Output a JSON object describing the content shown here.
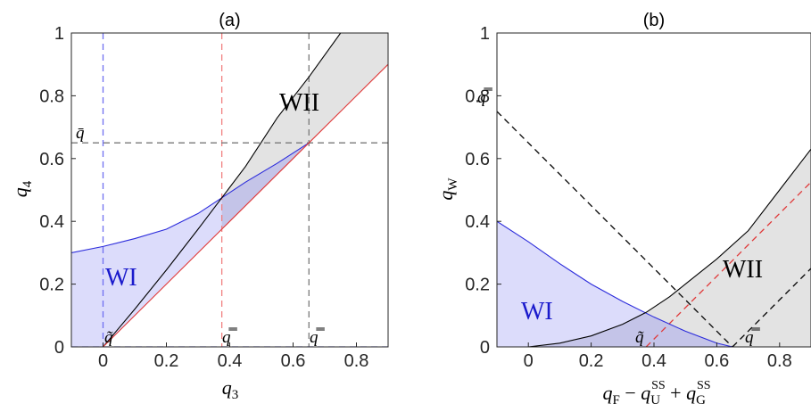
{
  "chart_data": [
    {
      "type": "line",
      "title": "(a)",
      "xlabel": "q_3",
      "ylabel": "q_4",
      "xlim": [
        -0.1,
        0.9
      ],
      "ylim": [
        0,
        1
      ],
      "xticks": [
        "0",
        "0.2",
        "0.4",
        "0.6",
        "0.8"
      ],
      "yticks": [
        "0",
        "0.2",
        "0.4",
        "0.6",
        "0.8",
        "1"
      ],
      "grid": false,
      "series": [
        {
          "color": "#2b2bdb",
          "x": [
            -0.1,
            0.0,
            0.1,
            0.2,
            0.3,
            0.375,
            0.45,
            0.55,
            0.65
          ],
          "y": [
            0.3,
            0.32,
            0.345,
            0.375,
            0.425,
            0.475,
            0.525,
            0.585,
            0.65
          ]
        },
        {
          "color": "#000000",
          "x": [
            0.0,
            0.1,
            0.2,
            0.3,
            0.375,
            0.45,
            0.55,
            0.65,
            0.75
          ],
          "y": [
            0.0,
            0.12,
            0.245,
            0.375,
            0.475,
            0.575,
            0.73,
            0.86,
            1.0
          ]
        },
        {
          "color": "#e03a3a",
          "x": [
            0.0,
            0.375,
            0.65,
            0.9
          ],
          "y": [
            0.0,
            0.375,
            0.65,
            0.9
          ]
        }
      ],
      "reference_lines": [
        {
          "orient": "vertical",
          "value": 0,
          "color": "#6f6ff0"
        },
        {
          "orient": "vertical",
          "value": 0.375,
          "color": "#f08080"
        },
        {
          "orient": "vertical",
          "value": 0.65,
          "color": "#7a7a7a"
        },
        {
          "orient": "horizontal",
          "value": 0.65,
          "color": "#7a7a7a"
        },
        {
          "orient": "horizontal",
          "value": 0,
          "color": "#6f6ff0"
        }
      ],
      "regions": [
        {
          "label": "WI",
          "color": "#1a1acc",
          "fill": "#dcdcfb"
        },
        {
          "label": "WII",
          "color": "#000000",
          "fill": "#e3e3e3"
        }
      ],
      "annotations": [
        "q̄",
        "q̃",
        "q̿",
        "q̿"
      ]
    },
    {
      "type": "line",
      "title": "(b)",
      "xlabel": "q_F − q_U^SS + q_G^SS",
      "ylabel": "q_W",
      "xlim": [
        -0.1,
        0.9
      ],
      "ylim": [
        0,
        1
      ],
      "xticks": [
        "0",
        "0.2",
        "0.4",
        "0.6",
        "0.8"
      ],
      "yticks": [
        "0",
        "0.2",
        "0.4",
        "0.6",
        "0.8",
        "1"
      ],
      "grid": false,
      "series": [
        {
          "color": "#2b2bdb",
          "x": [
            -0.1,
            0.0,
            0.1,
            0.2,
            0.3,
            0.4,
            0.5,
            0.6,
            0.65
          ],
          "y": [
            0.4,
            0.335,
            0.265,
            0.2,
            0.145,
            0.095,
            0.05,
            0.012,
            0.0
          ]
        },
        {
          "color": "#000000",
          "x": [
            0.0,
            0.1,
            0.2,
            0.3,
            0.375,
            0.45,
            0.5,
            0.6,
            0.7,
            0.8,
            0.9
          ],
          "y": [
            0.0,
            0.012,
            0.035,
            0.072,
            0.11,
            0.16,
            0.2,
            0.28,
            0.37,
            0.5,
            0.63
          ]
        },
        {
          "color": "#e03a3a",
          "x": [
            -0.1,
            0.375,
            0.9
          ],
          "y": [
            0.0,
            0.0,
            0.0
          ]
        }
      ],
      "reference_lines": [
        {
          "orient": "diagonal",
          "from": [
            -0.1,
            0.75
          ],
          "to": [
            0.65,
            0.0
          ],
          "color": "#000000"
        },
        {
          "orient": "diagonal",
          "from": [
            0.375,
            0.0
          ],
          "to": [
            0.9,
            0.525
          ],
          "color": "#e03a3a"
        },
        {
          "orient": "diagonal",
          "from": [
            0.65,
            0.0
          ],
          "to": [
            0.9,
            0.25
          ],
          "color": "#000000"
        }
      ],
      "regions": [
        {
          "label": "WI",
          "color": "#1a1acc",
          "fill": "#dcdcfb"
        },
        {
          "label": "WII",
          "color": "#000000",
          "fill": "#e3e3e3"
        }
      ],
      "annotations": [
        "q̿",
        "q̃",
        "q̿"
      ]
    }
  ]
}
